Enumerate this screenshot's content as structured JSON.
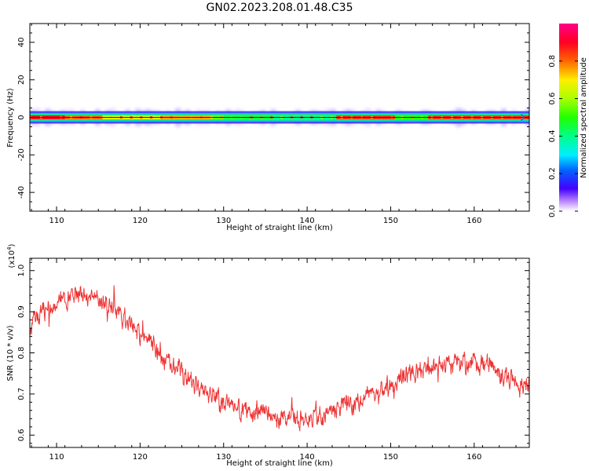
{
  "figure": {
    "title": "GN02.2023.208.01.48.C35"
  },
  "chart_data": [
    {
      "type": "heatmap",
      "name": "spectrogram",
      "xlabel": "Height of straight line (km)",
      "ylabel": "Frequency (Hz)",
      "xlim": [
        106.8,
        166.6
      ],
      "ylim": [
        -50,
        50
      ],
      "x_ticks": [
        110,
        120,
        130,
        140,
        150,
        160
      ],
      "y_ticks": [
        40,
        20,
        0,
        -20,
        -40
      ],
      "band_center_hz": 0,
      "band_halfwidth_hz": 1.5,
      "band_segments": [
        {
          "x": [
            106.8,
            111.0
          ],
          "amp": 0.9
        },
        {
          "x": [
            111.0,
            115.5
          ],
          "amp": 0.8
        },
        {
          "x": [
            115.5,
            122.5
          ],
          "amp": 0.65
        },
        {
          "x": [
            122.5,
            128.5
          ],
          "amp": 0.75
        },
        {
          "x": [
            128.5,
            130.0
          ],
          "amp": 0.55
        },
        {
          "x": [
            130.0,
            136.0
          ],
          "amp": 0.45
        },
        {
          "x": [
            136.0,
            143.5
          ],
          "amp": 0.4
        },
        {
          "x": [
            143.5,
            150.5
          ],
          "amp": 0.85
        },
        {
          "x": [
            150.5,
            154.5
          ],
          "amp": 0.5
        },
        {
          "x": [
            154.5,
            166.6
          ],
          "amp": 0.85
        }
      ],
      "colorbar": {
        "label": "Normalized spectral amplitude",
        "range": [
          0,
          1
        ],
        "ticks": [
          0.0,
          0.2,
          0.4,
          0.6,
          0.8
        ],
        "tick_labels": [
          "0.0",
          "0.2",
          "0.4",
          "0.6",
          "0.8"
        ],
        "colormap": "gist_rainbow_reversed"
      }
    },
    {
      "type": "line",
      "name": "snr",
      "xlabel": "Height of straight line (km)",
      "ylabel": "SNR (10 * v/v)",
      "y_scale_base": "(x10",
      "y_scale_exp": "4",
      "y_scale_tail": ")",
      "xlim": [
        106.8,
        166.6
      ],
      "ylim": [
        0.57,
        1.03
      ],
      "x_ticks": [
        110,
        120,
        130,
        140,
        150,
        160
      ],
      "y_ticks": [
        0.6,
        0.7,
        0.8,
        0.9,
        1.0
      ],
      "color": "#ee3333",
      "trend_x": [
        106.8,
        108,
        110,
        112,
        113.5,
        115,
        117,
        119,
        121,
        123,
        125,
        127,
        129,
        131,
        133,
        135,
        137,
        139,
        141,
        143,
        145,
        147,
        149,
        151,
        153,
        155,
        157,
        159,
        161,
        163,
        165,
        166.6
      ],
      "trend_y": [
        0.86,
        0.9,
        0.925,
        0.94,
        0.945,
        0.93,
        0.905,
        0.87,
        0.825,
        0.785,
        0.75,
        0.72,
        0.69,
        0.67,
        0.655,
        0.645,
        0.64,
        0.64,
        0.645,
        0.655,
        0.67,
        0.69,
        0.71,
        0.73,
        0.75,
        0.765,
        0.775,
        0.775,
        0.77,
        0.755,
        0.73,
        0.71
      ],
      "noise_amplitude": 0.03,
      "n_points": 1200
    }
  ]
}
